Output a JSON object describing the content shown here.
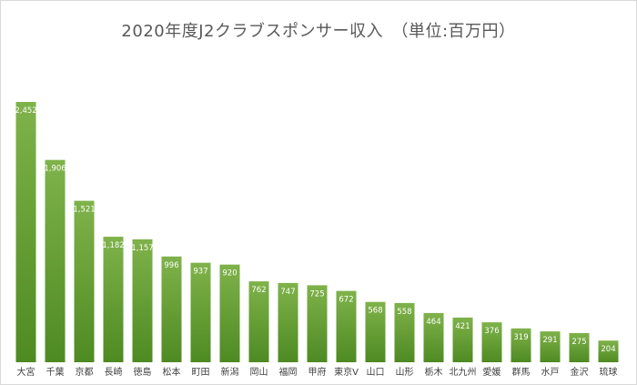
{
  "title": "2020年度J2クラブスポンサー収入　（単位:百万円）",
  "colors": {
    "bar_top": "#7fb24a",
    "bar_bottom": "#4e8a22",
    "value_text": "#ffffff",
    "axis_text": "#404040"
  },
  "chart_data": {
    "type": "bar",
    "title": "2020年度J2クラブスポンサー収入　（単位:百万円）",
    "xlabel": "",
    "ylabel": "",
    "ylim": [
      0,
      2700
    ],
    "grid": false,
    "legend": "none",
    "categories": [
      "大宮",
      "千葉",
      "京都",
      "長崎",
      "徳島",
      "松本",
      "町田",
      "新潟",
      "岡山",
      "福岡",
      "甲府",
      "東京V",
      "山口",
      "山形",
      "栃木",
      "北九州",
      "愛媛",
      "群馬",
      "水戸",
      "金沢",
      "琉球"
    ],
    "values": [
      2452,
      1906,
      1521,
      1182,
      1157,
      996,
      937,
      920,
      762,
      747,
      725,
      672,
      568,
      558,
      464,
      421,
      376,
      319,
      291,
      275,
      204
    ],
    "value_labels": [
      "2,452",
      "1,906",
      "1,521",
      "1,182",
      "1,157",
      "996",
      "937",
      "920",
      "762",
      "747",
      "725",
      "672",
      "568",
      "558",
      "464",
      "421",
      "376",
      "319",
      "291",
      "275",
      "204"
    ]
  }
}
